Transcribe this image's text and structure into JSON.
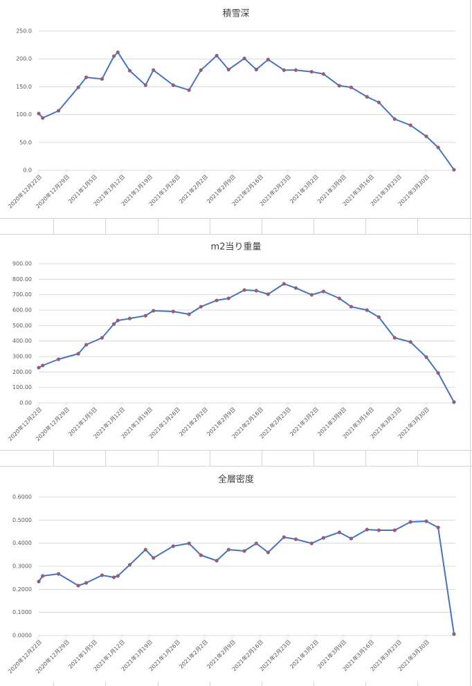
{
  "chart_data": [
    {
      "type": "line",
      "title": "積雪深",
      "color": "#4472c4",
      "marker_color": "#c0504d",
      "grid": true,
      "x": [
        "2020-12-22",
        "2020-12-23",
        "2020-12-27",
        "2021-01-01",
        "2021-01-03",
        "2021-01-07",
        "2021-01-10",
        "2021-01-11",
        "2021-01-14",
        "2021-01-18",
        "2021-01-20",
        "2021-01-25",
        "2021-01-29",
        "2021-02-01",
        "2021-02-05",
        "2021-02-08",
        "2021-02-12",
        "2021-02-15",
        "2021-02-18",
        "2021-02-22",
        "2021-02-25",
        "2021-03-01",
        "2021-03-04",
        "2021-03-08",
        "2021-03-11",
        "2021-03-15",
        "2021-03-18",
        "2021-03-22",
        "2021-03-26",
        "2021-03-30",
        "2021-04-02",
        "2021-04-06"
      ],
      "values": [
        102,
        94,
        107,
        149,
        167,
        164,
        205,
        212,
        179,
        153,
        180,
        153,
        144,
        180,
        206,
        181,
        201,
        181,
        199,
        180,
        180,
        177,
        173,
        152,
        149,
        132,
        122,
        92,
        81,
        61,
        41,
        1
      ],
      "xlim": [
        "2020-12-22",
        "2021-04-06"
      ],
      "xticks": [
        {
          "value": "2020-12-22",
          "label": "2020年12月22日"
        },
        {
          "value": "2020-12-29",
          "label": "2020年12月29日"
        },
        {
          "value": "2021-01-05",
          "label": "2021年1月5日"
        },
        {
          "value": "2021-01-12",
          "label": "2021年1月12日"
        },
        {
          "value": "2021-01-19",
          "label": "2021年1月19日"
        },
        {
          "value": "2021-01-26",
          "label": "2021年1月26日"
        },
        {
          "value": "2021-02-02",
          "label": "2021年2月2日"
        },
        {
          "value": "2021-02-09",
          "label": "2021年2月9日"
        },
        {
          "value": "2021-02-16",
          "label": "2021年2月16日"
        },
        {
          "value": "2021-02-23",
          "label": "2021年2月23日"
        },
        {
          "value": "2021-03-02",
          "label": "2021年3月2日"
        },
        {
          "value": "2021-03-09",
          "label": "2021年3月9日"
        },
        {
          "value": "2021-03-16",
          "label": "2021年3月16日"
        },
        {
          "value": "2021-03-23",
          "label": "2021年3月23日"
        },
        {
          "value": "2021-03-30",
          "label": "2021年3月30日"
        }
      ],
      "ylim": [
        0,
        250
      ],
      "yticks": [
        {
          "value": 0,
          "label": "0.0"
        },
        {
          "value": 50,
          "label": "50.0"
        },
        {
          "value": 100,
          "label": "100.0"
        },
        {
          "value": 150,
          "label": "150.0"
        },
        {
          "value": 200,
          "label": "200.0"
        },
        {
          "value": 250,
          "label": "250.0"
        }
      ]
    },
    {
      "type": "line",
      "title": "m2当り重量",
      "color": "#4472c4",
      "marker_color": "#c0504d",
      "grid": true,
      "x": [
        "2020-12-22",
        "2020-12-23",
        "2020-12-27",
        "2021-01-01",
        "2021-01-03",
        "2021-01-07",
        "2021-01-10",
        "2021-01-11",
        "2021-01-14",
        "2021-01-18",
        "2021-01-20",
        "2021-01-25",
        "2021-01-29",
        "2021-02-01",
        "2021-02-05",
        "2021-02-08",
        "2021-02-12",
        "2021-02-15",
        "2021-02-18",
        "2021-02-22",
        "2021-02-25",
        "2021-03-01",
        "2021-03-04",
        "2021-03-08",
        "2021-03-11",
        "2021-03-15",
        "2021-03-18",
        "2021-03-22",
        "2021-03-26",
        "2021-03-30",
        "2021-04-02",
        "2021-04-06"
      ],
      "values": [
        228,
        242,
        282,
        318,
        376,
        421,
        510,
        533,
        546,
        564,
        596,
        591,
        573,
        622,
        663,
        676,
        730,
        726,
        703,
        770,
        743,
        699,
        721,
        676,
        622,
        600,
        555,
        421,
        394,
        296,
        193,
        5
      ],
      "xlim": [
        "2020-12-22",
        "2021-04-06"
      ],
      "xticks": [
        {
          "value": "2020-12-22",
          "label": "2020年12月22日"
        },
        {
          "value": "2020-12-29",
          "label": "2020年12月29日"
        },
        {
          "value": "2021-01-05",
          "label": "2021年1月5日"
        },
        {
          "value": "2021-01-12",
          "label": "2021年1月12日"
        },
        {
          "value": "2021-01-19",
          "label": "2021年1月19日"
        },
        {
          "value": "2021-01-26",
          "label": "2021年1月26日"
        },
        {
          "value": "2021-02-02",
          "label": "2021年2月2日"
        },
        {
          "value": "2021-02-09",
          "label": "2021年2月9日"
        },
        {
          "value": "2021-02-16",
          "label": "2021年2月16日"
        },
        {
          "value": "2021-02-23",
          "label": "2021年2月23日"
        },
        {
          "value": "2021-03-02",
          "label": "2021年3月2日"
        },
        {
          "value": "2021-03-09",
          "label": "2021年3月9日"
        },
        {
          "value": "2021-03-16",
          "label": "2021年3月16日"
        },
        {
          "value": "2021-03-23",
          "label": "2021年3月23日"
        },
        {
          "value": "2021-03-30",
          "label": "2021年3月30日"
        }
      ],
      "ylim": [
        0,
        900
      ],
      "yticks": [
        {
          "value": 0,
          "label": "0.00"
        },
        {
          "value": 100,
          "label": "100.00"
        },
        {
          "value": 200,
          "label": "200.00"
        },
        {
          "value": 300,
          "label": "300.00"
        },
        {
          "value": 400,
          "label": "400.00"
        },
        {
          "value": 500,
          "label": "500.00"
        },
        {
          "value": 600,
          "label": "600.00"
        },
        {
          "value": 700,
          "label": "700.00"
        },
        {
          "value": 800,
          "label": "800.00"
        },
        {
          "value": 900,
          "label": "900.00"
        }
      ]
    },
    {
      "type": "line",
      "title": "全層密度",
      "color": "#4472c4",
      "marker_color": "#c0504d",
      "grid": true,
      "x": [
        "2020-12-22",
        "2020-12-23",
        "2020-12-27",
        "2021-01-01",
        "2021-01-03",
        "2021-01-07",
        "2021-01-10",
        "2021-01-11",
        "2021-01-14",
        "2021-01-18",
        "2021-01-20",
        "2021-01-25",
        "2021-01-29",
        "2021-02-01",
        "2021-02-05",
        "2021-02-08",
        "2021-02-12",
        "2021-02-15",
        "2021-02-18",
        "2021-02-22",
        "2021-02-25",
        "2021-03-01",
        "2021-03-04",
        "2021-03-08",
        "2021-03-11",
        "2021-03-15",
        "2021-03-18",
        "2021-03-22",
        "2021-03-26",
        "2021-03-30",
        "2021-04-02",
        "2021-04-06"
      ],
      "values": [
        0.234,
        0.258,
        0.267,
        0.216,
        0.228,
        0.261,
        0.252,
        0.258,
        0.306,
        0.372,
        0.336,
        0.387,
        0.399,
        0.348,
        0.324,
        0.372,
        0.366,
        0.399,
        0.36,
        0.426,
        0.417,
        0.399,
        0.423,
        0.447,
        0.42,
        0.459,
        0.456,
        0.456,
        0.492,
        0.495,
        0.468,
        0.006
      ],
      "xlim": [
        "2020-12-22",
        "2021-04-06"
      ],
      "xticks": [
        {
          "value": "2020-12-22",
          "label": "2020年12月22日"
        },
        {
          "value": "2020-12-29",
          "label": "2020年12月29日"
        },
        {
          "value": "2021-01-05",
          "label": "2021年1月5日"
        },
        {
          "value": "2021-01-12",
          "label": "2021年1月12日"
        },
        {
          "value": "2021-01-19",
          "label": "2021年1月19日"
        },
        {
          "value": "2021-01-26",
          "label": "2021年1月26日"
        },
        {
          "value": "2021-02-02",
          "label": "2021年2月2日"
        },
        {
          "value": "2021-02-09",
          "label": "2021年2月9日"
        },
        {
          "value": "2021-02-16",
          "label": "2021年2月16日"
        },
        {
          "value": "2021-02-23",
          "label": "2021年2月23日"
        },
        {
          "value": "2021-03-02",
          "label": "2021年3月2日"
        },
        {
          "value": "2021-03-09",
          "label": "2021年3月9日"
        },
        {
          "value": "2021-03-16",
          "label": "2021年3月16日"
        },
        {
          "value": "2021-03-23",
          "label": "2021年3月23日"
        },
        {
          "value": "2021-03-30",
          "label": "2021年3月30日"
        }
      ],
      "ylim": [
        0,
        0.6
      ],
      "yticks": [
        {
          "value": 0,
          "label": "0.0000"
        },
        {
          "value": 0.1,
          "label": "0.1000"
        },
        {
          "value": 0.2,
          "label": "0.2000"
        },
        {
          "value": 0.3,
          "label": "0.3000"
        },
        {
          "value": 0.4,
          "label": "0.4000"
        },
        {
          "value": 0.5,
          "label": "0.5000"
        },
        {
          "value": 0.6,
          "label": "0.6000"
        }
      ]
    }
  ]
}
